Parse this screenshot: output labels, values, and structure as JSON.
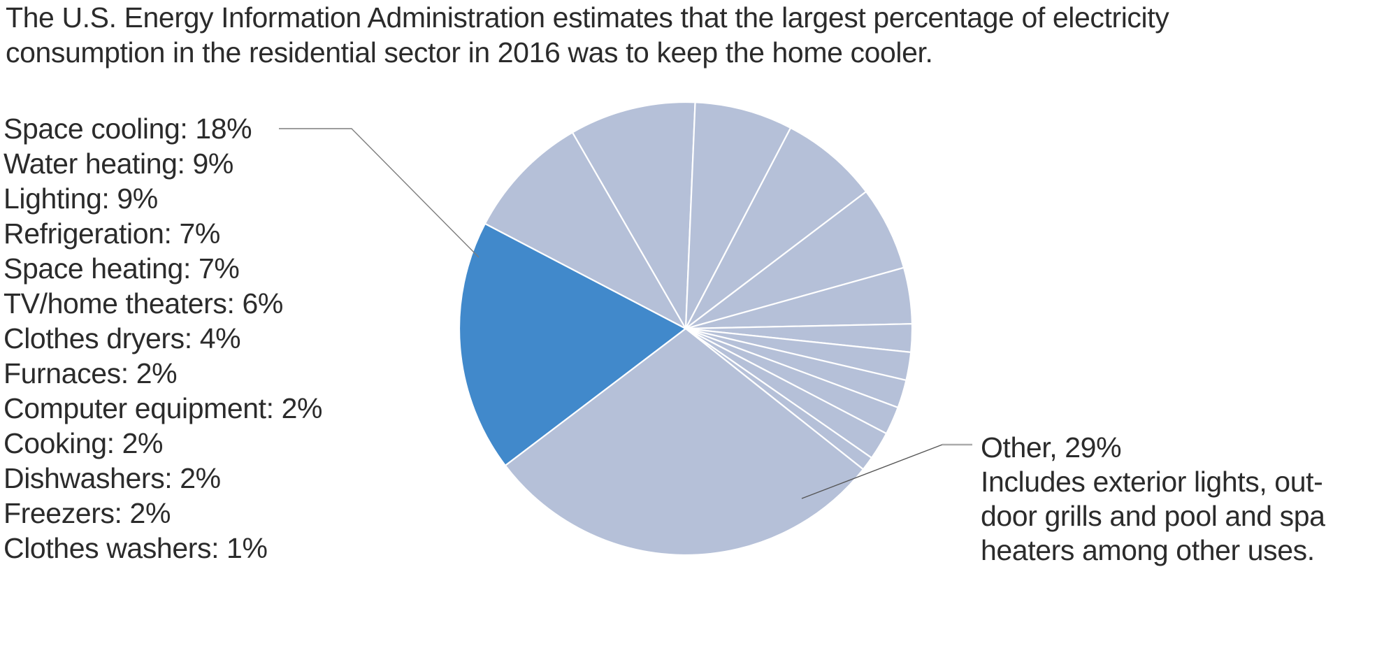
{
  "page": {
    "background_color": "#ffffff"
  },
  "title_lines": [
    "The U.S. Energy Information Administration estimates that the largest percentage of electricity",
    "consumption in the residential sector in 2016 was to keep the home cooler."
  ],
  "chart_data": {
    "type": "pie",
    "title": "The U.S. Energy Information Administration estimates that the largest percentage of electricity consumption in the residential sector in 2016 was to keep the home cooler.",
    "unit": "%",
    "direction": "clockwise",
    "start_angle_deg": 232.8,
    "legend_position": "left",
    "slices": [
      {
        "label": "Space cooling",
        "value": 18,
        "highlighted": true,
        "in_legend": true
      },
      {
        "label": "Water heating",
        "value": 9,
        "highlighted": false,
        "in_legend": true
      },
      {
        "label": "Lighting",
        "value": 9,
        "highlighted": false,
        "in_legend": true
      },
      {
        "label": "Refrigeration",
        "value": 7,
        "highlighted": false,
        "in_legend": true
      },
      {
        "label": "Space heating",
        "value": 7,
        "highlighted": false,
        "in_legend": true
      },
      {
        "label": "TV/home theaters",
        "value": 6,
        "highlighted": false,
        "in_legend": true
      },
      {
        "label": "Clothes dryers",
        "value": 4,
        "highlighted": false,
        "in_legend": true
      },
      {
        "label": "Furnaces",
        "value": 2,
        "highlighted": false,
        "in_legend": true
      },
      {
        "label": "Computer equipment",
        "value": 2,
        "highlighted": false,
        "in_legend": true
      },
      {
        "label": "Cooking",
        "value": 2,
        "highlighted": false,
        "in_legend": true
      },
      {
        "label": "Dishwashers",
        "value": 2,
        "highlighted": false,
        "in_legend": true
      },
      {
        "label": "Freezers",
        "value": 2,
        "highlighted": false,
        "in_legend": true
      },
      {
        "label": "Clothes washers",
        "value": 1,
        "highlighted": false,
        "in_legend": true
      },
      {
        "label": "Other",
        "value": 29,
        "highlighted": false,
        "in_legend": false
      }
    ],
    "legend_label_separator": ": ",
    "annotation": {
      "lines": [
        "Other, 29%",
        "Includes exterior lights, out-",
        "door grills and pool and spa",
        "heaters among other uses."
      ]
    },
    "colors": {
      "highlight": "#4189cb",
      "base": "#b5c0d8",
      "divider": "#ffffff",
      "text": "#2b2b2b",
      "leader_mid": "#7d7d7d",
      "leader_dark": "#565656",
      "leader_light": "#ababab"
    }
  }
}
